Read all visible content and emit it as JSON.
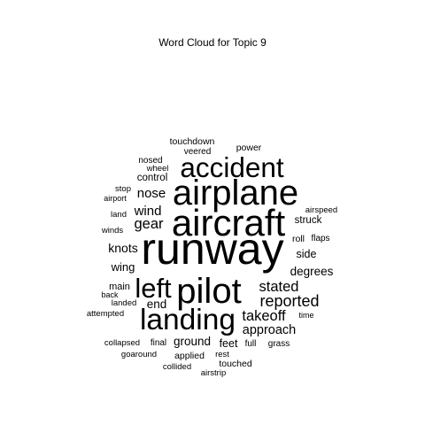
{
  "chart_data": {
    "type": "wordcloud",
    "title": "Word Cloud for Topic 9",
    "text_color": "#000000",
    "words": [
      {
        "text": "runway",
        "size": 100
      },
      {
        "text": "aircraft",
        "size": 84
      },
      {
        "text": "airplane",
        "size": 80
      },
      {
        "text": "pilot",
        "size": 80
      },
      {
        "text": "landing",
        "size": 67
      },
      {
        "text": "left",
        "size": 62
      },
      {
        "text": "accident",
        "size": 63
      },
      {
        "text": "reported",
        "size": 36
      },
      {
        "text": "stated",
        "size": 33
      },
      {
        "text": "gear",
        "size": 33
      },
      {
        "text": "wind",
        "size": 30
      },
      {
        "text": "nose",
        "size": 30
      },
      {
        "text": "takeoff",
        "size": 33
      },
      {
        "text": "approach",
        "size": 29
      },
      {
        "text": "knots",
        "size": 28
      },
      {
        "text": "degrees",
        "size": 27
      },
      {
        "text": "end",
        "size": 27
      },
      {
        "text": "ground",
        "size": 27
      },
      {
        "text": "wing",
        "size": 26
      },
      {
        "text": "side",
        "size": 25
      },
      {
        "text": "feet",
        "size": 25
      },
      {
        "text": "control",
        "size": 23
      },
      {
        "text": "struck",
        "size": 23
      },
      {
        "text": "main",
        "size": 22
      },
      {
        "text": "touched",
        "size": 21
      },
      {
        "text": "touchdown",
        "size": 21
      },
      {
        "text": "roll",
        "size": 21
      },
      {
        "text": "applied",
        "size": 21
      },
      {
        "text": "power",
        "size": 21
      },
      {
        "text": "nosed",
        "size": 20
      },
      {
        "text": "veered",
        "size": 20
      },
      {
        "text": "flaps",
        "size": 20
      },
      {
        "text": "full",
        "size": 20
      },
      {
        "text": "grass",
        "size": 20
      },
      {
        "text": "final",
        "size": 20
      },
      {
        "text": "land",
        "size": 19
      },
      {
        "text": "wheel",
        "size": 19
      },
      {
        "text": "stop",
        "size": 19
      },
      {
        "text": "airspeed",
        "size": 19
      },
      {
        "text": "winds",
        "size": 19
      },
      {
        "text": "attempted",
        "size": 19
      },
      {
        "text": "landed",
        "size": 19
      },
      {
        "text": "collapsed",
        "size": 19
      },
      {
        "text": "goaround",
        "size": 19
      },
      {
        "text": "rest",
        "size": 19
      },
      {
        "text": "collided",
        "size": 19
      },
      {
        "text": "airstrip",
        "size": 19
      },
      {
        "text": "airport",
        "size": 18
      },
      {
        "text": "back",
        "size": 18
      },
      {
        "text": "time",
        "size": 18
      }
    ]
  }
}
